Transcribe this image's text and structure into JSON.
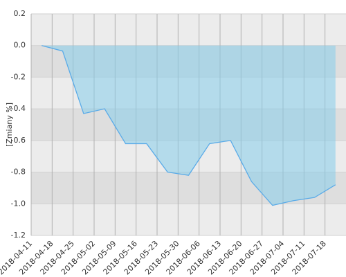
{
  "chart_data": {
    "type": "area",
    "y_label": "[Zmiany %]",
    "categories": [
      "2018-04-11",
      "2018-04-18",
      "2018-04-25",
      "2018-05-02",
      "2018-05-09",
      "2018-05-16",
      "2018-05-23",
      "2018-05-30",
      "2018-06-06",
      "2018-06-13",
      "2018-06-20",
      "2018-06-27",
      "2018-07-04",
      "2018-07-11",
      "2018-07-18"
    ],
    "values": [
      0.0,
      -0.035,
      -0.43,
      -0.4,
      -0.62,
      -0.62,
      -0.8,
      -0.82,
      -0.62,
      -0.6,
      -0.86,
      -1.01,
      -0.98,
      -0.96,
      -0.88
    ],
    "color": "#5aabe8",
    "ylim": [
      -1.2,
      0.2
    ],
    "yticks": [
      -1.2,
      {
        "value": -1.0,
        "label": "-1.0"
      },
      -0.8,
      -0.6,
      -0.4,
      -0.2,
      {
        "value": 0,
        "label": "0.0"
      },
      0.2
    ],
    "grid": true
  }
}
